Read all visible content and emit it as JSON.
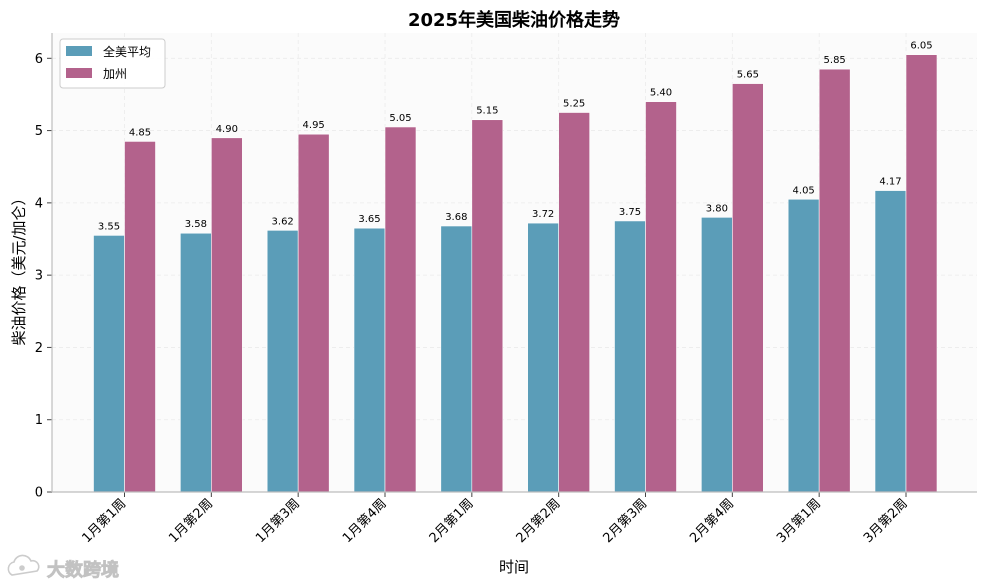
{
  "chart_data": {
    "type": "bar",
    "title": "2025年美国柴油价格走势",
    "xlabel": "时间",
    "ylabel": "柴油价格（美元/加仑）",
    "categories": [
      "1月第1周",
      "1月第2周",
      "1月第3周",
      "1月第4周",
      "2月第1周",
      "2月第2周",
      "2月第3周",
      "2月第4周",
      "3月第1周",
      "3月第2周"
    ],
    "series": [
      {
        "name": "全美平均",
        "color": "#5b9db8",
        "values": [
          3.55,
          3.58,
          3.62,
          3.65,
          3.68,
          3.72,
          3.75,
          3.8,
          4.05,
          4.17
        ],
        "labels": [
          "3.55",
          "3.58",
          "3.62",
          "3.65",
          "3.68",
          "3.72",
          "3.75",
          "3.80",
          "4.05",
          "4.17"
        ]
      },
      {
        "name": "加州",
        "color": "#b3628c",
        "values": [
          4.85,
          4.9,
          4.95,
          5.05,
          5.15,
          5.25,
          5.4,
          5.65,
          5.85,
          6.05
        ],
        "labels": [
          "4.85",
          "4.90",
          "4.95",
          "5.05",
          "5.15",
          "5.25",
          "5.40",
          "5.65",
          "5.85",
          "6.05"
        ]
      }
    ],
    "ylim": [
      0,
      6.35
    ],
    "yticks": [
      "0",
      "1",
      "2",
      "3",
      "4",
      "5",
      "6"
    ],
    "grid": true,
    "legend_position": "top-left"
  },
  "watermark": {
    "text": "大数跨境",
    "icon": "cloud-logo-icon"
  }
}
